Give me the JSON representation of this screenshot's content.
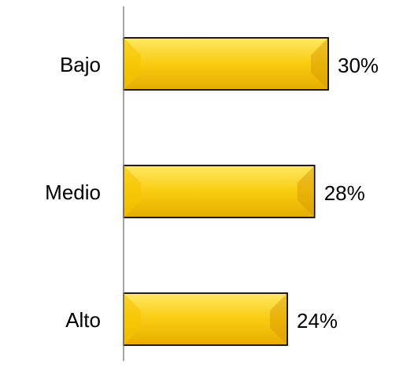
{
  "chart_data": {
    "type": "bar",
    "orientation": "horizontal",
    "categories": [
      "Bajo",
      "Medio",
      "Alto"
    ],
    "values": [
      30,
      28,
      24
    ],
    "value_labels": [
      "30%",
      "28%",
      "24%"
    ],
    "color": "#f5c400",
    "xlim": [
      0,
      40
    ]
  }
}
